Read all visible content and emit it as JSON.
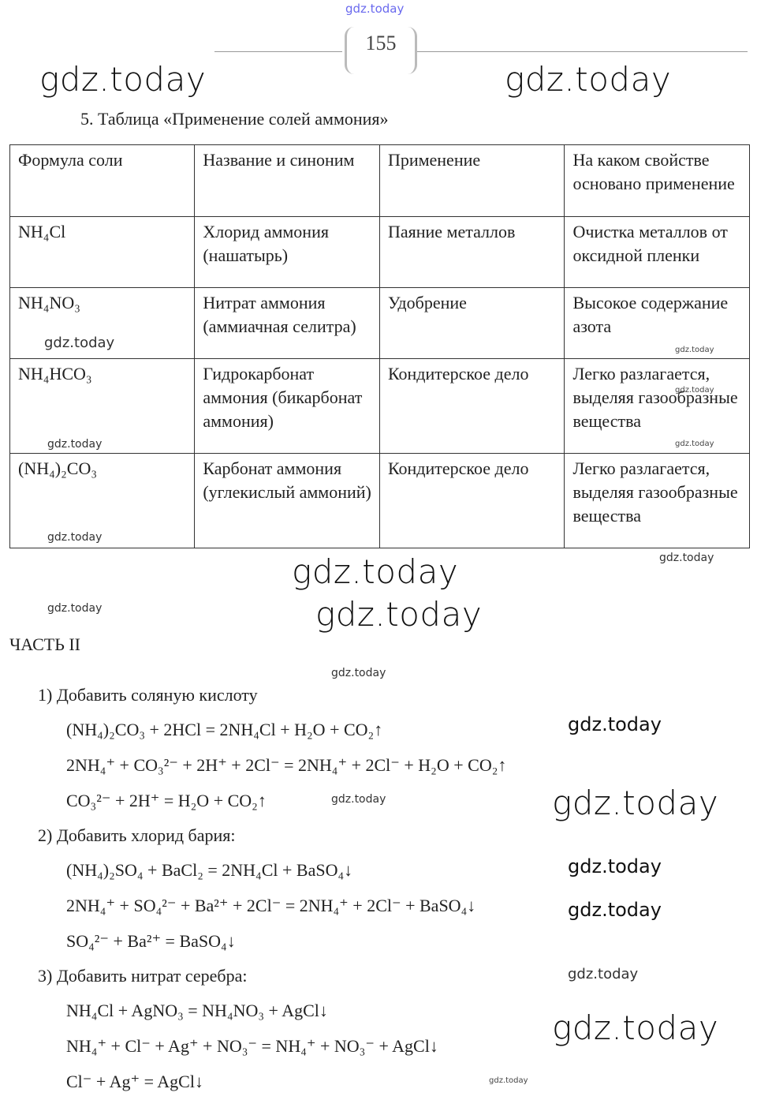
{
  "watermark": "gdz.today",
  "page_number": "155",
  "caption": "5.  Таблица «Применение солей аммония»",
  "table": {
    "headers": [
      "Формула соли",
      "Название и синоним",
      "Применение",
      "На каком свойстве основано применение"
    ],
    "rows": [
      [
        "NH₄Cl",
        "Хлорид аммония (нашатырь)",
        "Паяние металлов",
        "Очистка металлов от оксидной пленки"
      ],
      [
        "NH₄NO₃",
        "Нитрат аммония (аммиачная селитра)",
        "Удобрение",
        "Высокое содержание азота"
      ],
      [
        "NH₄HCO₃",
        "Гидрокарбонат аммония (бикарбонат аммония)",
        "Кондитерское дело",
        "Легко разлагается, выделяя газообразные вещества"
      ],
      [
        "(NH₄)₂CO₃",
        "Карбонат аммония (углекислый аммоний)",
        "Кондитерское дело",
        "Легко разлагается, выделяя газообразные вещества"
      ]
    ]
  },
  "part2": {
    "title": "ЧАСТЬ II",
    "items": [
      {
        "label": "1)  Добавить соляную кислоту",
        "equations": [
          "(NH₄)₂CO₃ + 2HCl = 2NH₄Cl + H₂O + CO₂↑",
          "2NH₄⁺ + CO₃²⁻ + 2H⁺ + 2Cl⁻ = 2NH₄⁺ + 2Cl⁻ + H₂O + CO₂↑",
          "CO₃²⁻ + 2H⁺ = H₂O + CO₂↑"
        ]
      },
      {
        "label": "2)  Добавить хлорид бария:",
        "equations": [
          "(NH₄)₂SO₄ + BaCl₂ = 2NH₄Cl + BaSO₄↓",
          "2NH₄⁺ + SO₄²⁻ + Ba²⁺ + 2Cl⁻ = 2NH₄⁺ + 2Cl⁻ + BaSO₄↓",
          "SO₄²⁻ + Ba²⁺ = BaSO₄↓"
        ]
      },
      {
        "label": "3)  Добавить нитрат серебра:",
        "equations": [
          "NH₄Cl + AgNO₃ = NH₄NO₃ + AgCl↓",
          "NH₄⁺ + Cl⁻ + Ag⁺ + NO₃⁻ = NH₄⁺ + NO₃⁻ + AgCl↓",
          "Cl⁻ + Ag⁺ = AgCl↓"
        ]
      }
    ]
  }
}
